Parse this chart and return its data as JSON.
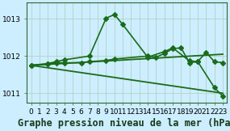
{
  "title": "Graphe pression niveau de la mer (hPa)",
  "bg_color": "#cceeff",
  "line_color": "#1a6b1a",
  "grid_color": "#b0ccbb",
  "xlim": [
    -0.5,
    23.5
  ],
  "ylim": [
    1010.75,
    1013.45
  ],
  "yticks": [
    1011,
    1012,
    1013
  ],
  "xticks": [
    0,
    1,
    2,
    3,
    4,
    5,
    6,
    7,
    8,
    9,
    10,
    11,
    12,
    13,
    14,
    15,
    16,
    17,
    18,
    19,
    20,
    21,
    22,
    23
  ],
  "series": [
    {
      "x": [
        0,
        2,
        3,
        4,
        7,
        9,
        10,
        11,
        14,
        16,
        17,
        19,
        20,
        22,
        23
      ],
      "y": [
        1011.75,
        1011.8,
        1011.85,
        1011.9,
        1012.0,
        1013.02,
        1013.12,
        1012.85,
        1011.97,
        1012.12,
        1012.22,
        1011.87,
        1011.85,
        1011.15,
        1010.92
      ],
      "marker": "D",
      "markersize": 3,
      "linewidth": 1.2
    },
    {
      "x": [
        0,
        2,
        3,
        4,
        6,
        7,
        9,
        10,
        14,
        15,
        16,
        17,
        18,
        19,
        20,
        21,
        22,
        23
      ],
      "y": [
        1011.75,
        1011.78,
        1011.82,
        1011.82,
        1011.82,
        1011.85,
        1011.88,
        1011.92,
        1012.0,
        1011.97,
        1012.07,
        1012.2,
        1012.22,
        1011.82,
        1011.85,
        1012.1,
        1011.85,
        1011.82
      ],
      "marker": "D",
      "markersize": 3,
      "linewidth": 1.2
    },
    {
      "x": [
        0,
        23
      ],
      "y": [
        1011.75,
        1012.05
      ],
      "marker": null,
      "markersize": 0,
      "linewidth": 1.3
    },
    {
      "x": [
        0,
        23
      ],
      "y": [
        1011.75,
        1011.0
      ],
      "marker": null,
      "markersize": 0,
      "linewidth": 1.3
    }
  ],
  "title_fontsize": 8.5,
  "tick_fontsize": 6.5
}
